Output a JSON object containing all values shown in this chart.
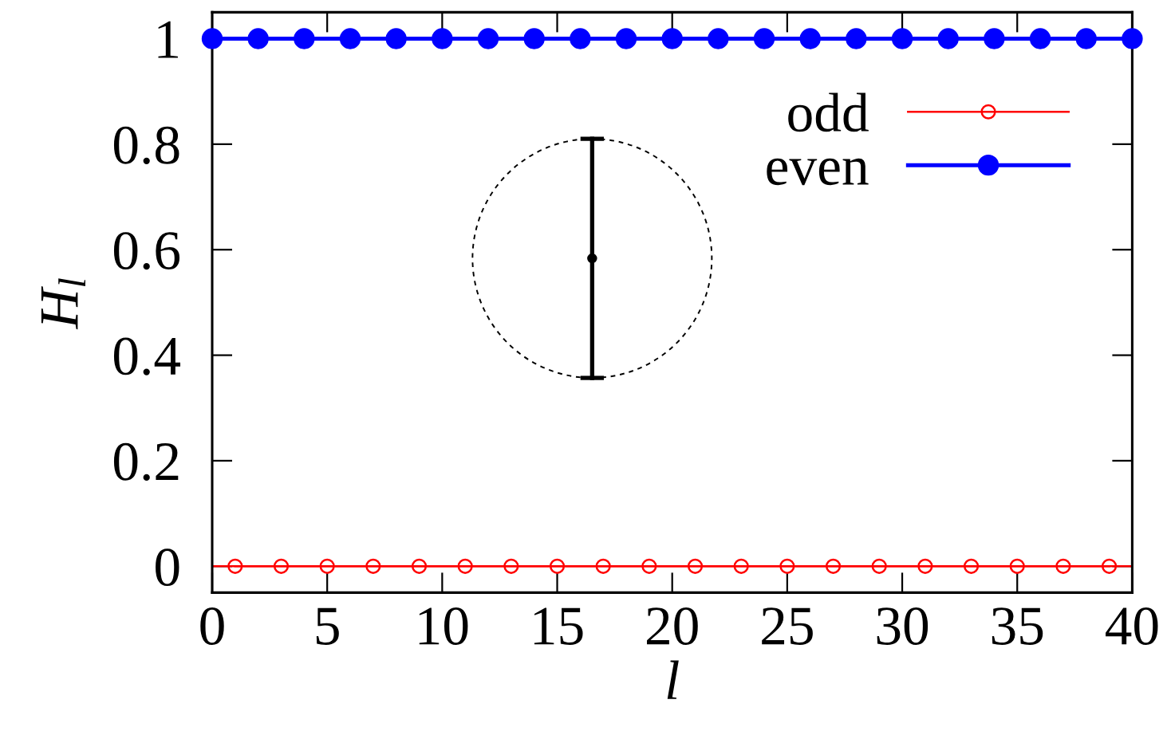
{
  "chart_data": {
    "type": "line",
    "xlabel": "l",
    "ylabel": "H$_{l}$",
    "xlim": [
      0,
      40
    ],
    "xticks": [
      0,
      5,
      10,
      15,
      20,
      25,
      30,
      35,
      40
    ],
    "ylim": [
      -0.05,
      1.05
    ],
    "yticks": [
      0,
      0.2,
      0.4,
      0.6,
      0.8,
      1
    ],
    "marker": "circle",
    "line_style": "solid",
    "legend": "top right",
    "ref_lines": [
      {
        "axis": "y",
        "value": 0,
        "color": "#ff0000"
      }
    ],
    "series": [
      {
        "name": "odd",
        "color": "#ff0000",
        "x": [
          1,
          3,
          5,
          7,
          9,
          11,
          13,
          15,
          17,
          19,
          21,
          23,
          25,
          27,
          29,
          31,
          33,
          35,
          37,
          39
        ],
        "values": [
          0,
          0,
          0,
          0,
          0,
          0,
          0,
          0,
          0,
          0,
          0,
          0,
          0,
          0,
          0,
          0,
          0,
          0,
          0,
          0
        ]
      },
      {
        "name": "even",
        "color": "#0000ff",
        "x": [
          0,
          2,
          4,
          6,
          8,
          10,
          12,
          14,
          16,
          18,
          20,
          22,
          24,
          26,
          28,
          30,
          32,
          34,
          36,
          38,
          40
        ],
        "values": [
          1,
          1,
          1,
          1,
          1,
          1,
          1,
          1,
          1,
          1,
          1,
          1,
          1,
          1,
          1,
          1,
          1,
          1,
          1,
          1,
          1
        ]
      }
    ]
  }
}
